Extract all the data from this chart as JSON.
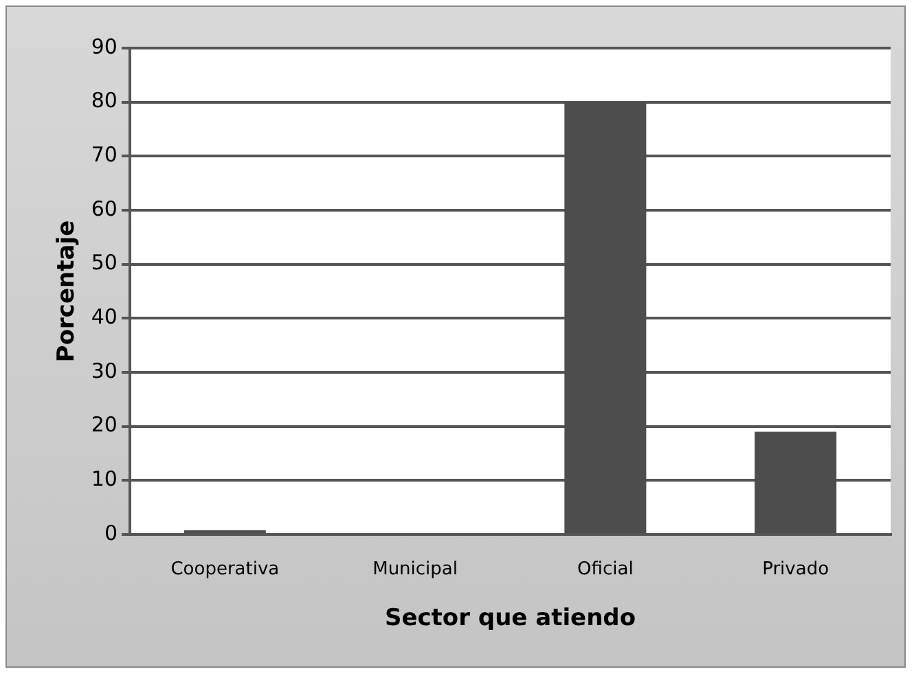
{
  "chart_data": {
    "type": "bar",
    "xlabel": "Sector que atiendo",
    "ylabel": "Porcentaje",
    "categories": [
      "Cooperativa",
      "Municipal",
      "Oficial",
      "Privado"
    ],
    "values": [
      0.8,
      0,
      80,
      19
    ],
    "color": "#4d4d4d",
    "ylim": [
      0,
      90
    ],
    "yticks": [
      0,
      10,
      20,
      30,
      40,
      50,
      60,
      70,
      80,
      90
    ],
    "grid": "y",
    "legend": false
  }
}
